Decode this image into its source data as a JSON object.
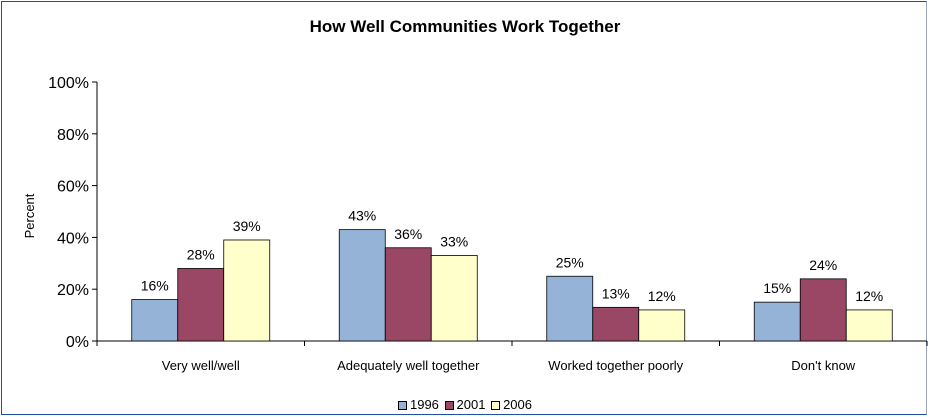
{
  "chart_data": {
    "type": "bar",
    "title": "How Well Communities Work Together",
    "xlabel": "",
    "ylabel": "Percent",
    "ylim": [
      0,
      100
    ],
    "yticks": [
      "0%",
      "20%",
      "40%",
      "60%",
      "80%",
      "100%"
    ],
    "grid": false,
    "legend_position": "bottom",
    "categories": [
      "Very well/well",
      "Adequately well together",
      "Worked together poorly",
      "Don't know"
    ],
    "series": [
      {
        "name": "1996",
        "color": "#95B3D7",
        "values": [
          16,
          43,
          25,
          15
        ],
        "labels": [
          "16%",
          "43%",
          "25%",
          "15%"
        ]
      },
      {
        "name": "2001",
        "color": "#9A4766",
        "values": [
          28,
          36,
          13,
          24
        ],
        "labels": [
          "28%",
          "36%",
          "13%",
          "24%"
        ]
      },
      {
        "name": "2006",
        "color": "#FFFFCC",
        "values": [
          39,
          33,
          12,
          12
        ],
        "labels": [
          "39%",
          "33%",
          "12%",
          "12%"
        ]
      }
    ]
  }
}
